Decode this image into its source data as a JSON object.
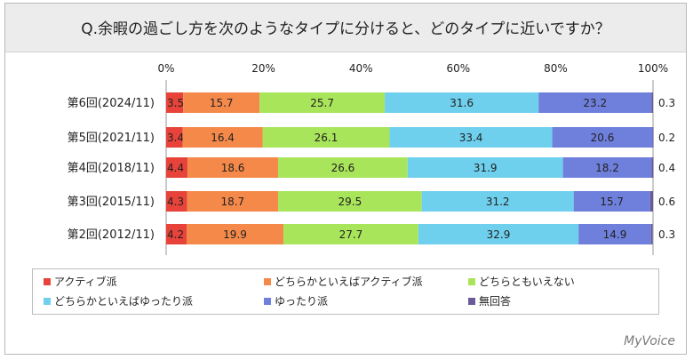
{
  "title": "Q.余暇の過ごし方を次のようなタイプに分けると、どのタイプに近いですか？",
  "brand": "MyVoice",
  "chart_data": {
    "type": "bar",
    "orientation": "horizontal",
    "stacked": true,
    "percent_axis": true,
    "xlim": [
      0,
      100
    ],
    "ticks": [
      "0%",
      "20%",
      "40%",
      "60%",
      "80%",
      "100%"
    ],
    "categories": [
      "第6回(2024/11)",
      "第5回(2021/11)",
      "第4回(2018/11)",
      "第3回(2015/11)",
      "第2回(2012/11)"
    ],
    "series": [
      {
        "name": "アクティブ派",
        "color": "#e8433a",
        "values": [
          3.5,
          3.4,
          4.4,
          4.3,
          4.2
        ]
      },
      {
        "name": "どちらかといえばアクティブ派",
        "color": "#f5894a",
        "values": [
          15.7,
          16.4,
          18.6,
          18.7,
          19.9
        ]
      },
      {
        "name": "どちらともいえない",
        "color": "#a9e55a",
        "values": [
          25.7,
          26.1,
          26.6,
          29.5,
          27.7
        ]
      },
      {
        "name": "どちらかといえばゆったり派",
        "color": "#6fd0ee",
        "values": [
          31.6,
          33.4,
          31.9,
          31.2,
          32.9
        ]
      },
      {
        "name": "ゆったり派",
        "color": "#6f7fdc",
        "values": [
          23.2,
          20.6,
          18.2,
          15.7,
          14.9
        ]
      },
      {
        "name": "無回答",
        "color": "#6a5a9a",
        "values": [
          0.3,
          0.2,
          0.4,
          0.6,
          0.3
        ]
      }
    ],
    "legend_position": "bottom",
    "grid": false
  }
}
